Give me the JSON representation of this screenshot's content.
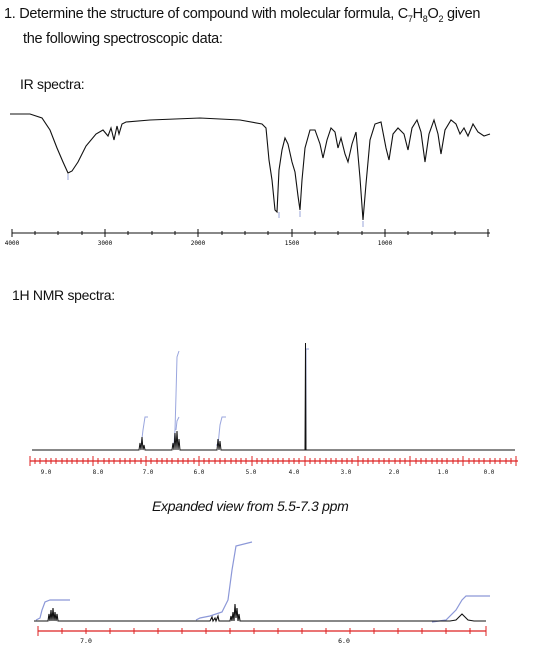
{
  "question": {
    "line1_prefix": "1. Determine the structure of compound with molecular formula, C",
    "c_sub": "7",
    "h": "H",
    "h_sub": "8",
    "o": "O",
    "o_sub": "2",
    "line1_suffix": " given",
    "line2": "the following spectroscopic data:"
  },
  "ir": {
    "title": "IR spectra:",
    "ticks": [
      "4000",
      "3000",
      "2000",
      "1500",
      "1000"
    ]
  },
  "nmr": {
    "title": "1H NMR spectra:",
    "ticks": [
      "9.0",
      "8.0",
      "7.0",
      "6.0",
      "5.0",
      "4.0",
      "3.0",
      "2.0",
      "1.0",
      "0.0"
    ]
  },
  "expanded": {
    "title": "Expanded view from 5.5-7.3 ppm",
    "ticks": [
      "7.0",
      "6.0"
    ]
  }
}
